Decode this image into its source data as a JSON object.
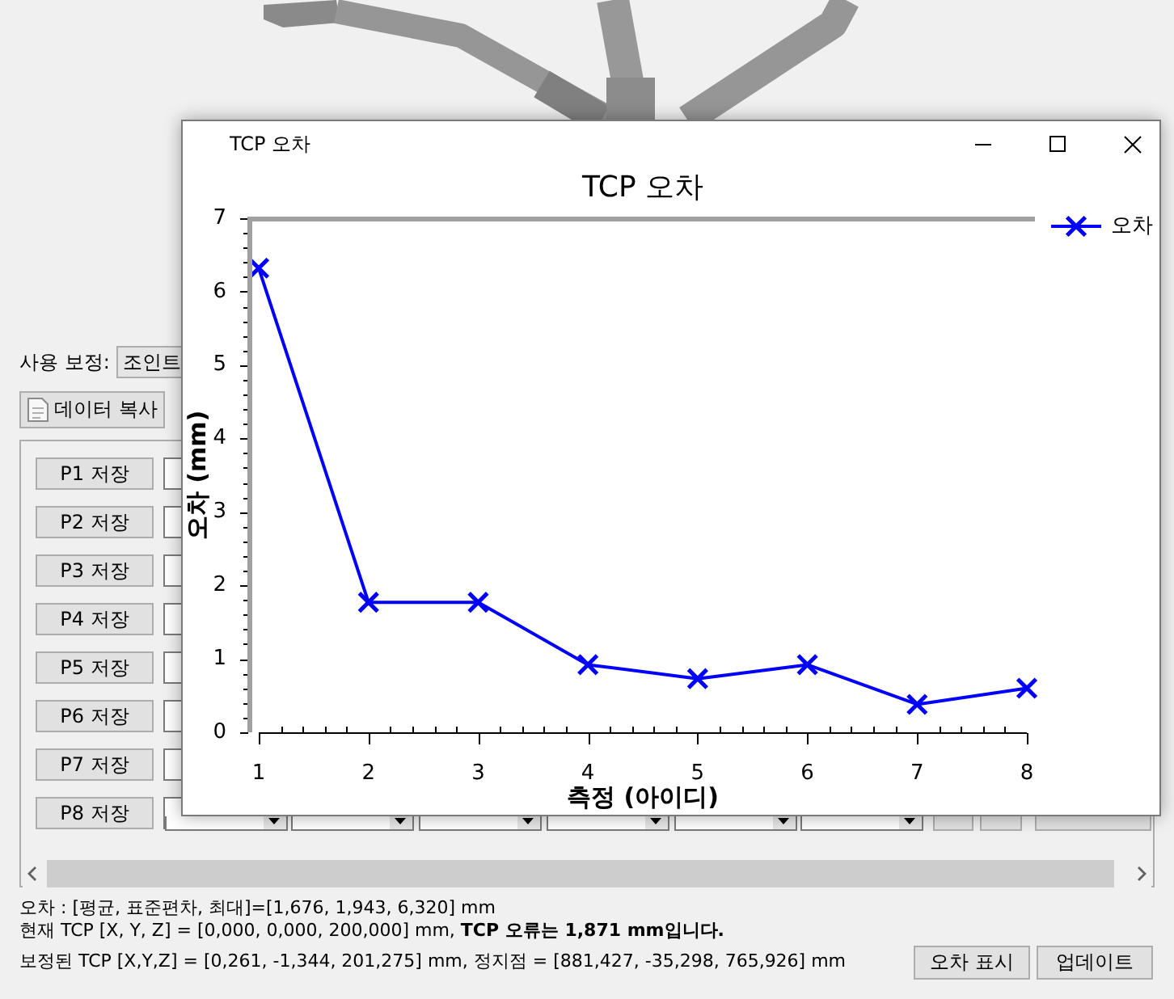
{
  "chart_data": {
    "type": "line",
    "title": "TCP 오차",
    "xlabel": "측정 (아이디)",
    "ylabel": "오차 (mm)",
    "x": [
      1,
      2,
      3,
      4,
      5,
      6,
      7,
      8
    ],
    "series": [
      {
        "name": "오차",
        "color": "#0000ff",
        "values": [
          6.32,
          1.77,
          1.77,
          0.92,
          0.73,
          0.92,
          0.38,
          0.6
        ]
      }
    ],
    "xlim": [
      1,
      8
    ],
    "xticks": [
      1,
      {
        "value": 1.2,
        "label": null
      },
      {
        "value": 1.4,
        "label": null
      },
      {
        "value": 1.6,
        "label": null
      },
      {
        "value": 1.8,
        "label": null
      },
      2,
      {
        "value": 2.2,
        "label": null
      },
      {
        "value": 2.4,
        "label": null
      },
      {
        "value": 2.6,
        "label": null
      },
      {
        "value": 2.8,
        "label": null
      },
      3,
      {
        "value": 3.2,
        "label": null
      },
      {
        "value": 3.4,
        "label": null
      },
      {
        "value": 3.6,
        "label": null
      },
      {
        "value": 3.8,
        "label": null
      },
      4,
      {
        "value": 4.2,
        "label": null
      },
      {
        "value": 4.4,
        "label": null
      },
      {
        "value": 4.6,
        "label": null
      },
      {
        "value": 4.8,
        "label": null
      },
      5,
      {
        "value": 5.2,
        "label": null
      },
      {
        "value": 5.4,
        "label": null
      },
      {
        "value": 5.6,
        "label": null
      },
      {
        "value": 5.8,
        "label": null
      },
      6,
      {
        "value": 6.2,
        "label": null
      },
      {
        "value": 6.4,
        "label": null
      },
      {
        "value": 6.6,
        "label": null
      },
      {
        "value": 6.8,
        "label": null
      },
      7,
      {
        "value": 7.2,
        "label": null
      },
      {
        "value": 7.4,
        "label": null
      },
      {
        "value": 7.6,
        "label": null
      },
      {
        "value": 7.8,
        "label": null
      },
      8
    ],
    "ylim": [
      0,
      7
    ],
    "yticks": [
      0,
      {
        "value": 0.2,
        "label": null
      },
      {
        "value": 0.4,
        "label": null
      },
      {
        "value": 0.6,
        "label": null
      },
      {
        "value": 0.8,
        "label": null
      },
      1,
      {
        "value": 1.2,
        "label": null
      },
      {
        "value": 1.4,
        "label": null
      },
      {
        "value": 1.6,
        "label": null
      },
      {
        "value": 1.8,
        "label": null
      },
      2,
      {
        "value": 2.2,
        "label": null
      },
      {
        "value": 2.4,
        "label": null
      },
      {
        "value": 2.6,
        "label": null
      },
      {
        "value": 2.8,
        "label": null
      },
      3,
      {
        "value": 3.2,
        "label": null
      },
      {
        "value": 3.4,
        "label": null
      },
      {
        "value": 3.6,
        "label": null
      },
      {
        "value": 3.8,
        "label": null
      },
      4,
      {
        "value": 4.2,
        "label": null
      },
      {
        "value": 4.4,
        "label": null
      },
      {
        "value": 4.6,
        "label": null
      },
      {
        "value": 4.8,
        "label": null
      },
      5,
      {
        "value": 5.2,
        "label": null
      },
      {
        "value": 5.4,
        "label": null
      },
      {
        "value": 5.6,
        "label": null
      },
      {
        "value": 5.8,
        "label": null
      },
      6,
      {
        "value": 6.2,
        "label": null
      },
      {
        "value": 6.4,
        "label": null
      },
      {
        "value": 6.6,
        "label": null
      },
      {
        "value": 6.8,
        "label": null
      },
      7
    ],
    "legend": "top right",
    "marker": "cross",
    "line_style": "solid",
    "annotations": [
      "사용 보정:",
      "조인트",
      "데이터 복사",
      "P1 저장",
      "P2 저장",
      "P3 저장",
      "P4 저장",
      "P5 저장",
      "P6 저장",
      "P7 저장",
      "P8 저장",
      "오차 : [평균, 표준편차, 최대]=[1,676, 1,943, 6,320] mm",
      "현재 TCP [X, Y, Z] = [0,000, 0,000, 200,000] mm,",
      "TCP 오류는 1,871 mm입니다.",
      "보정된 TCP [X,Y,Z] = [0,261, -1,344, 201,275] mm, 정지점 = [881,427, -35,298, 765,926] mm",
      "오차 표시",
      "업데이트"
    ]
  }
}
